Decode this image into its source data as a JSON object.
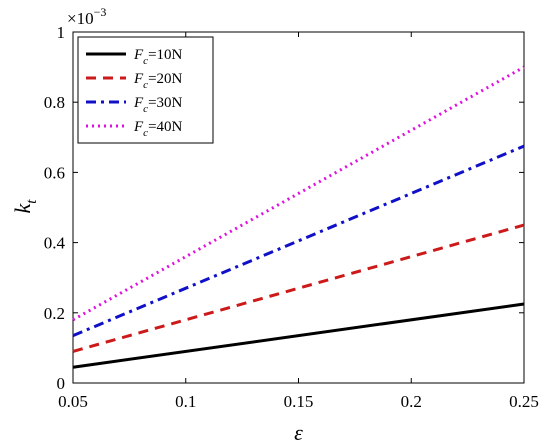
{
  "chart_data": {
    "type": "line",
    "title": "",
    "xlabel": "ε",
    "ylabel": "k",
    "ylabel_subscript": "t",
    "y_exponent": "×10",
    "y_exponent_power": "−3",
    "xlim": [
      0.05,
      0.25
    ],
    "ylim": [
      0,
      1
    ],
    "xticks": [
      0.05,
      0.1,
      0.15,
      0.2,
      0.25
    ],
    "xtick_labels": [
      "0.05",
      "0.1",
      "0.15",
      "0.2",
      "0.25"
    ],
    "yticks": [
      0,
      0.2,
      0.4,
      0.6,
      0.8,
      1
    ],
    "ytick_labels": [
      "0",
      "0.2",
      "0.4",
      "0.6",
      "0.8",
      "1"
    ],
    "grid": false,
    "legend_position": "top-left",
    "series": [
      {
        "name": "=10N",
        "label_var": "F",
        "label_sub": "c",
        "label_rest": "=10N",
        "color": "#000000",
        "style": "solid",
        "x": [
          0.05,
          0.25
        ],
        "values": [
          0.045,
          0.225
        ]
      },
      {
        "name": "=20N",
        "label_var": "F",
        "label_sub": "c",
        "label_rest": "=20N",
        "color": "#cc1a1a",
        "style": "dashed",
        "x": [
          0.05,
          0.25
        ],
        "values": [
          0.09,
          0.45
        ]
      },
      {
        "name": "=30N",
        "label_var": "F",
        "label_sub": "c",
        "label_rest": "=30N",
        "color": "#1010c8",
        "style": "dashdot",
        "x": [
          0.05,
          0.25
        ],
        "values": [
          0.135,
          0.675
        ]
      },
      {
        "name": "=40N",
        "label_var": "F",
        "label_sub": "c",
        "label_rest": "=40N",
        "color": "#e010e0",
        "style": "dotted",
        "x": [
          0.05,
          0.25
        ],
        "values": [
          0.18,
          0.9
        ]
      }
    ]
  }
}
